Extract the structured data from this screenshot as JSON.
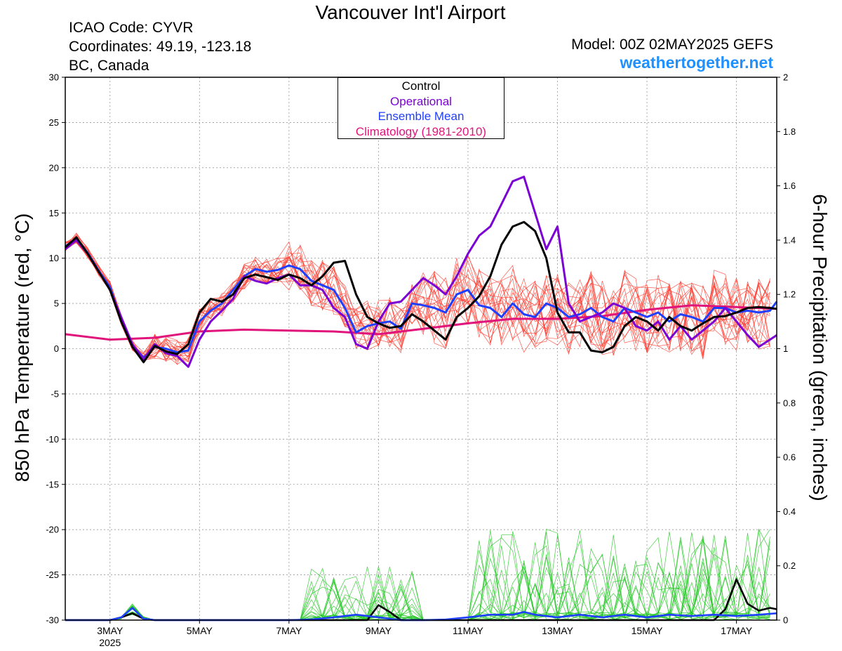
{
  "header": {
    "title": "Vancouver Int'l Airport",
    "icao": "ICAO Code: CYVR",
    "coordinates": "Coordinates: 49.19, -123.18",
    "region": "BC, Canada",
    "model": "Model: 00Z 02MAY2025 GEFS",
    "brand": "weathertogether.net",
    "brand_color": "#1e90ff"
  },
  "chart_data": {
    "type": "line",
    "ylabel": "850 hPa Temperature (red, °C)",
    "y2label": "6-hour Precipitation (green, inches)",
    "ylim": [
      -30,
      30
    ],
    "y_ticks": [
      "30",
      "25",
      "20",
      "15",
      "10",
      "5",
      "0",
      "-5",
      "-10",
      "-15",
      "-20",
      "-25",
      "-30"
    ],
    "y2lim": [
      0,
      2
    ],
    "y2_ticks": [
      "2",
      "1.8",
      "1.6",
      "1.4",
      "1.2",
      "1",
      "0.8",
      "0.6",
      "0.4",
      "0.2",
      "0"
    ],
    "grid": true,
    "legend_position": "top-center",
    "x_axis": {
      "unit": "days since 2 May 2025 00Z",
      "range": [
        0,
        15.9
      ],
      "ticks": [
        {
          "label": "3MAY",
          "day": 1
        },
        {
          "label": "5MAY",
          "day": 3
        },
        {
          "label": "7MAY",
          "day": 5
        },
        {
          "label": "9MAY",
          "day": 7
        },
        {
          "label": "11MAY",
          "day": 9
        },
        {
          "label": "13MAY",
          "day": 11
        },
        {
          "label": "15MAY",
          "day": 13
        },
        {
          "label": "17MAY",
          "day": 15
        }
      ],
      "year_label": "2025"
    },
    "legend": [
      {
        "name": "Control",
        "color": "#000000"
      },
      {
        "name": "Operational",
        "color": "#7b00d4"
      },
      {
        "name": "Ensemble Mean",
        "color": "#1f3fff"
      },
      {
        "name": "Climatology (1981-2010)",
        "color": "#e0147a"
      }
    ],
    "series": [
      {
        "name": "Control",
        "color": "#000000",
        "x": [
          0,
          0.25,
          0.5,
          0.75,
          1,
          1.25,
          1.5,
          1.75,
          2,
          2.25,
          2.5,
          2.75,
          3,
          3.25,
          3.5,
          3.75,
          4,
          4.25,
          4.5,
          4.75,
          5,
          5.25,
          5.5,
          5.75,
          6,
          6.25,
          6.5,
          6.75,
          7,
          7.25,
          7.5,
          7.75,
          8,
          8.25,
          8.5,
          8.75,
          9,
          9.25,
          9.5,
          9.75,
          10,
          10.25,
          10.5,
          10.75,
          11,
          11.25,
          11.5,
          11.75,
          12,
          12.25,
          12.5,
          12.75,
          13,
          13.25,
          13.5,
          13.75,
          14,
          14.25,
          14.5,
          14.75,
          15,
          15.25,
          15.5,
          15.75,
          15.9
        ],
        "values": [
          11.2,
          12.3,
          10.5,
          8.5,
          6.5,
          3.0,
          0.2,
          -1.5,
          0.3,
          -0.3,
          -0.6,
          0.5,
          4.0,
          5.5,
          5.2,
          6.0,
          7.8,
          8.2,
          7.9,
          7.6,
          8.2,
          7.8,
          7.0,
          8.0,
          9.5,
          9.7,
          6.0,
          3.5,
          2.8,
          2.3,
          2.5,
          3.8,
          3.0,
          2.0,
          1.0,
          3.5,
          4.5,
          5.8,
          8.0,
          11.5,
          13.5,
          14.0,
          13.0,
          10.0,
          4.0,
          1.8,
          1.8,
          -0.2,
          -0.4,
          0.2,
          2.5,
          3.5,
          3.0,
          2.0,
          3.5,
          2.5,
          2.0,
          2.8,
          3.5,
          3.6,
          4.0,
          4.5,
          4.6,
          4.5,
          4.4
        ]
      },
      {
        "name": "Operational",
        "color": "#7b00d4",
        "x": [
          0,
          0.25,
          0.5,
          0.75,
          1,
          1.25,
          1.5,
          1.75,
          2,
          2.25,
          2.5,
          2.75,
          3,
          3.25,
          3.5,
          3.75,
          4,
          4.25,
          4.5,
          4.75,
          5,
          5.25,
          5.5,
          5.75,
          6,
          6.25,
          6.5,
          6.75,
          7,
          7.25,
          7.5,
          7.75,
          8,
          8.25,
          8.5,
          8.75,
          9,
          9.25,
          9.5,
          9.75,
          10,
          10.25,
          10.5,
          10.75,
          11,
          11.25,
          11.5,
          11.75,
          12,
          12.25,
          12.5,
          12.75,
          13,
          13.25,
          13.5,
          13.75,
          14,
          14.25,
          14.5,
          14.75,
          15,
          15.25,
          15.5,
          15.75,
          15.9
        ],
        "values": [
          11.0,
          12.0,
          10.5,
          8.5,
          6.5,
          3.5,
          0.5,
          -1.2,
          0.5,
          -0.5,
          -0.8,
          -2.0,
          1.0,
          3.0,
          4.2,
          5.5,
          8.0,
          7.5,
          7.2,
          7.8,
          8.2,
          7.0,
          7.0,
          6.5,
          4.5,
          3.5,
          0.5,
          0.0,
          3.0,
          5.0,
          5.2,
          6.5,
          7.8,
          7.0,
          6.0,
          8.0,
          10.5,
          12.5,
          13.5,
          16.0,
          18.5,
          19.0,
          15.0,
          11.0,
          13.5,
          5.0,
          3.0,
          3.5,
          4.0,
          5.0,
          4.5,
          2.5,
          2.0,
          3.0,
          1.0,
          2.5,
          1.0,
          2.0,
          3.0,
          4.5,
          3.0,
          1.5,
          0.2,
          1.0,
          1.5
        ]
      },
      {
        "name": "Ensemble Mean",
        "color": "#1f3fff",
        "x": [
          0,
          0.25,
          0.5,
          0.75,
          1,
          1.25,
          1.5,
          1.75,
          2,
          2.25,
          2.5,
          2.75,
          3,
          3.25,
          3.5,
          3.75,
          4,
          4.25,
          4.5,
          4.75,
          5,
          5.25,
          5.5,
          5.75,
          6,
          6.25,
          6.5,
          6.75,
          7,
          7.25,
          7.5,
          7.75,
          8,
          8.25,
          8.5,
          8.75,
          9,
          9.25,
          9.5,
          9.75,
          10,
          10.25,
          10.5,
          10.75,
          11,
          11.25,
          11.5,
          11.75,
          12,
          12.25,
          12.5,
          12.75,
          13,
          13.25,
          13.5,
          13.75,
          14,
          14.25,
          14.5,
          14.75,
          15,
          15.25,
          15.5,
          15.75,
          15.9
        ],
        "values": [
          11.3,
          12.2,
          10.6,
          8.6,
          6.8,
          3.2,
          0.4,
          -1.0,
          0.2,
          0.0,
          -0.4,
          -0.2,
          3.0,
          4.2,
          5.0,
          6.5,
          8.0,
          8.8,
          8.5,
          8.7,
          9.2,
          8.8,
          7.5,
          7.0,
          6.5,
          4.5,
          1.8,
          2.5,
          2.8,
          3.0,
          2.2,
          5.0,
          4.8,
          4.5,
          4.0,
          6.0,
          6.5,
          4.8,
          4.5,
          3.5,
          5.0,
          3.8,
          3.5,
          5.0,
          4.5,
          3.5,
          3.8,
          4.5,
          3.5,
          3.0,
          4.5,
          4.0,
          3.5,
          4.0,
          3.0,
          3.8,
          3.5,
          3.0,
          4.5,
          4.5,
          4.0,
          4.2,
          4.0,
          4.2,
          5.2
        ]
      },
      {
        "name": "Climatology (1981-2010)",
        "color": "#e0147a",
        "x": [
          0,
          1,
          2,
          3,
          4,
          5,
          6,
          7,
          8,
          9,
          10,
          11,
          12,
          13,
          14,
          15,
          15.9
        ],
        "values": [
          1.6,
          1.0,
          1.2,
          1.9,
          2.1,
          2.0,
          1.9,
          1.6,
          2.2,
          2.8,
          3.3,
          3.3,
          3.6,
          4.3,
          4.8,
          4.6,
          4.4
        ]
      }
    ],
    "precip_series": [
      {
        "name": "Control",
        "color": "#000000",
        "x": [
          0,
          1,
          1.25,
          1.5,
          1.75,
          2,
          3,
          4,
          5,
          6,
          6.75,
          7,
          7.25,
          7.5,
          8,
          9,
          10,
          11,
          12,
          13,
          14,
          14.5,
          14.75,
          15,
          15.25,
          15.5,
          15.75,
          15.9
        ],
        "values": [
          0,
          0,
          0.01,
          0.025,
          0.005,
          0,
          0,
          0,
          0,
          0,
          0,
          0.055,
          0.03,
          0,
          0,
          0,
          0,
          0,
          0,
          0,
          0,
          0,
          0.04,
          0.15,
          0.06,
          0.035,
          0.045,
          0.04
        ]
      },
      {
        "name": "Ensemble Mean",
        "color": "#1f3fff",
        "x": [
          0,
          1,
          1.25,
          1.5,
          1.75,
          2,
          3,
          4,
          5,
          5.5,
          6,
          6.5,
          7,
          7.5,
          8,
          8.5,
          9,
          9.5,
          10,
          10.25,
          10.5,
          11,
          11.5,
          12,
          12.5,
          13,
          13.5,
          14,
          14.5,
          15,
          15.5,
          15.9
        ],
        "values": [
          0,
          0,
          0.01,
          0.045,
          0.005,
          0,
          0,
          0,
          0,
          0.002,
          0.01,
          0.02,
          0.01,
          0,
          0,
          0.002,
          0.01,
          0.02,
          0.02,
          0.03,
          0.02,
          0.01,
          0.02,
          0.01,
          0.02,
          0.01,
          0.02,
          0.015,
          0.02,
          0.015,
          0.02,
          0.025
        ]
      }
    ]
  }
}
